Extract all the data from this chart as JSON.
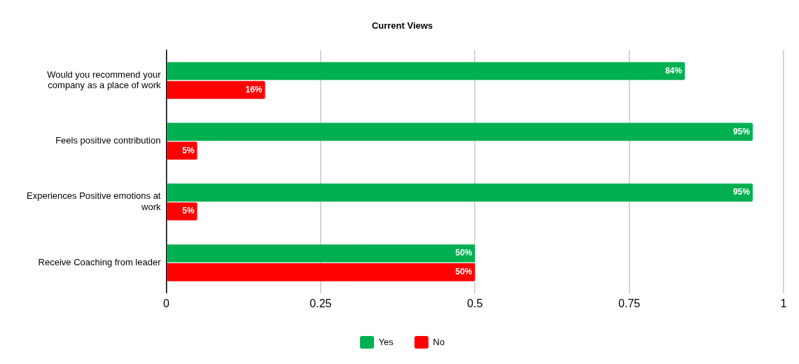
{
  "chart_data": {
    "type": "bar",
    "orientation": "horizontal",
    "title": "Current Views",
    "categories": [
      "Would you recommend your company as a place of work",
      "Feels positive contribution",
      "Experiences Positive emotions at work",
      "Receive Coaching from leader"
    ],
    "series": [
      {
        "name": "Yes",
        "color": "#00b050",
        "values": [
          0.84,
          0.95,
          0.95,
          0.5
        ],
        "value_labels": [
          "84%",
          "95%",
          "95%",
          "50%"
        ]
      },
      {
        "name": "No",
        "color": "#ff0000",
        "values": [
          0.16,
          0.05,
          0.05,
          0.5
        ],
        "value_labels": [
          "16%",
          "5%",
          "5%",
          "50%"
        ]
      }
    ],
    "xlim": [
      0,
      1
    ],
    "xticks": [
      0,
      0.25,
      0.5,
      0.75,
      1
    ],
    "grid": "x",
    "legend": "bottom"
  }
}
